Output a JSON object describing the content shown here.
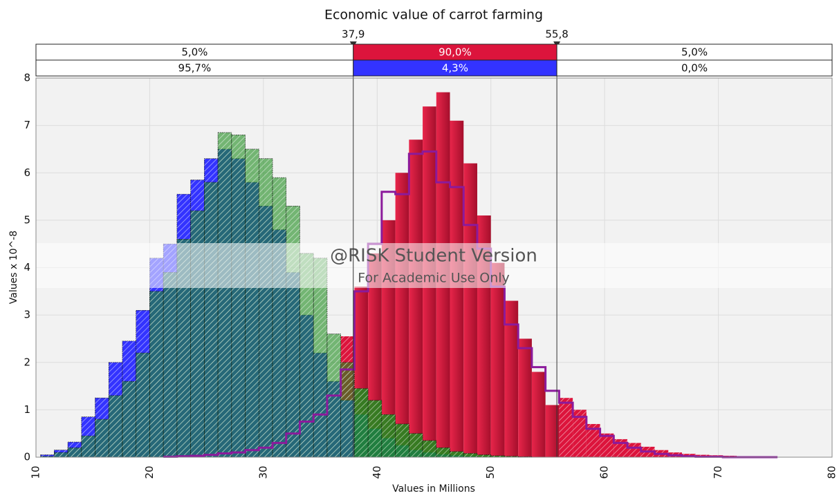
{
  "chart_data": {
    "type": "histogram",
    "title": "Economic value of carrot farming",
    "xlabel": "Values in Millions",
    "ylabel": "Values x 10^-8",
    "xlim": [
      10,
      80
    ],
    "ylim": [
      0,
      8
    ],
    "xticks": [
      10,
      20,
      30,
      40,
      50,
      60,
      70,
      80
    ],
    "yticks": [
      0,
      1,
      2,
      3,
      4,
      5,
      6,
      7,
      8
    ],
    "grid": true,
    "delimiters": [
      {
        "value": 37.9,
        "label": "37,9"
      },
      {
        "value": 55.8,
        "label": "55,8"
      }
    ],
    "bands": [
      {
        "color": "#dc143c",
        "values": [
          5,
          90,
          5
        ],
        "value_labels": [
          "5,0%",
          "90,0%",
          "5,0%"
        ]
      },
      {
        "color": "#3333ff",
        "values": [
          95.7,
          4.3,
          0
        ],
        "value_labels": [
          "95,7%",
          "4,3%",
          "0,0%"
        ]
      }
    ],
    "watermark": [
      "@RISK Student Version",
      "For Academic Use Only"
    ],
    "bins": [
      10.4,
      11.6,
      12.8,
      14.0,
      15.2,
      16.4,
      17.6,
      18.8,
      20.0,
      21.2,
      22.4,
      23.6,
      24.8,
      26.0,
      27.2,
      28.4,
      29.6,
      30.8,
      32.0,
      33.2,
      34.4,
      35.6,
      36.8,
      38.0,
      39.2,
      40.4,
      41.6,
      42.8,
      44.0,
      45.2,
      46.4,
      47.6,
      48.8,
      50.0,
      51.2,
      52.4,
      53.6,
      54.8,
      56.0,
      57.2,
      58.4,
      59.6,
      60.8,
      62.0,
      63.2,
      64.4,
      65.6,
      66.8,
      68.0,
      69.2,
      70.4,
      71.6,
      72.8,
      74.0,
      75.2
    ],
    "series": [
      {
        "style": "bars",
        "color": "#dc143c",
        "values": [
          0,
          0,
          0,
          0,
          0,
          0,
          0,
          0,
          0,
          0,
          0,
          0,
          0,
          0,
          0,
          0,
          0,
          0,
          0,
          0,
          0,
          0,
          2.55,
          3.6,
          4.3,
          5.0,
          6.0,
          6.7,
          7.4,
          7.7,
          7.1,
          6.2,
          5.1,
          4.1,
          3.3,
          2.5,
          1.8,
          1.1,
          1.25,
          1.0,
          0.7,
          0.5,
          0.38,
          0.3,
          0.22,
          0.15,
          0.1,
          0.07,
          0.05,
          0.04,
          0.03,
          0.02,
          0.01,
          0.01
        ]
      },
      {
        "style": "bars",
        "color": "#3333ff",
        "values": [
          0.05,
          0.15,
          0.32,
          0.85,
          1.25,
          2.0,
          2.45,
          3.1,
          4.2,
          4.5,
          5.55,
          5.85,
          6.3,
          6.5,
          6.3,
          5.8,
          5.3,
          4.8,
          3.9,
          3.0,
          2.2,
          1.6,
          1.2,
          0.9,
          0.6,
          0.4,
          0.25,
          0.15,
          0.1,
          0.06,
          0.04,
          0.02,
          0.01,
          0,
          0,
          0,
          0,
          0,
          0,
          0,
          0,
          0,
          0,
          0,
          0,
          0,
          0,
          0,
          0,
          0,
          0,
          0,
          0,
          0
        ]
      },
      {
        "style": "bars",
        "color": "#1e8c1e",
        "values": [
          0.02,
          0.1,
          0.2,
          0.45,
          0.8,
          1.3,
          1.6,
          2.2,
          3.5,
          3.9,
          4.6,
          5.2,
          5.8,
          6.85,
          6.8,
          6.5,
          6.3,
          5.9,
          5.3,
          4.3,
          4.2,
          2.6,
          2.0,
          1.45,
          1.2,
          0.9,
          0.7,
          0.5,
          0.35,
          0.2,
          0.12,
          0.08,
          0.05,
          0.03,
          0.02,
          0.01,
          0,
          0,
          0,
          0,
          0,
          0,
          0,
          0,
          0,
          0,
          0,
          0,
          0,
          0,
          0,
          0,
          0,
          0
        ]
      },
      {
        "style": "step",
        "color": "#8b1a9b",
        "values": [
          null,
          null,
          null,
          null,
          null,
          null,
          null,
          null,
          null,
          0.01,
          0.02,
          0.03,
          0.05,
          0.08,
          0.1,
          0.15,
          0.2,
          0.3,
          0.5,
          0.75,
          0.9,
          1.3,
          1.85,
          3.5,
          4.5,
          5.6,
          5.55,
          6.4,
          6.45,
          5.8,
          5.7,
          4.9,
          4.4,
          3.6,
          2.8,
          2.3,
          1.9,
          1.4,
          1.15,
          0.85,
          0.6,
          0.45,
          0.3,
          0.2,
          0.12,
          0.07,
          0.04,
          0.02,
          0.01,
          0.01,
          0,
          0,
          0,
          0
        ]
      }
    ]
  }
}
